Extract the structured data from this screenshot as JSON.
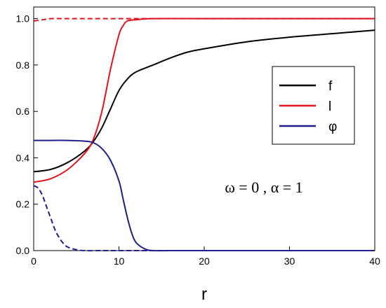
{
  "chart_data": {
    "type": "line",
    "title": "",
    "xlabel": "r",
    "ylabel": "",
    "xlim": [
      0,
      40
    ],
    "ylim": [
      0,
      1.05
    ],
    "x_ticks": [
      "0",
      "10",
      "20",
      "30",
      "40"
    ],
    "y_ticks": [
      "0.0",
      "0.2",
      "0.4",
      "0.6",
      "0.8",
      "1.0"
    ],
    "grid": false,
    "legend_position": "right",
    "annotation": "ω = 0 , α = 1",
    "series": [
      {
        "name": "f",
        "color": "#000000",
        "dash": "solid",
        "x": [
          0,
          2,
          4,
          6,
          7,
          8,
          9,
          10,
          11,
          12,
          14,
          16,
          18,
          20,
          25,
          30,
          35,
          40
        ],
        "y": [
          0.34,
          0.35,
          0.38,
          0.43,
          0.47,
          0.53,
          0.61,
          0.69,
          0.74,
          0.77,
          0.8,
          0.83,
          0.855,
          0.87,
          0.9,
          0.92,
          0.935,
          0.95
        ]
      },
      {
        "name": "l",
        "color": "#e0141e",
        "dash": "solid",
        "x": [
          0,
          2,
          4,
          6,
          7,
          8,
          9,
          10,
          10.5,
          11,
          12,
          14,
          20,
          30,
          40
        ],
        "y": [
          0.295,
          0.31,
          0.35,
          0.42,
          0.48,
          0.6,
          0.78,
          0.93,
          0.97,
          0.99,
          0.995,
          1.0,
          1.0,
          1.0,
          1.0
        ]
      },
      {
        "name": "φ",
        "color": "#1e1e8c",
        "dash": "solid",
        "x": [
          0,
          2,
          4,
          6,
          7,
          8,
          9,
          10,
          10.5,
          11,
          11.5,
          12,
          13,
          14,
          16,
          20,
          30,
          40
        ],
        "y": [
          0.475,
          0.475,
          0.475,
          0.472,
          0.465,
          0.44,
          0.39,
          0.3,
          0.22,
          0.14,
          0.075,
          0.035,
          0.008,
          0.0,
          0.0,
          0.0,
          0.0,
          0.0
        ]
      },
      {
        "color": "#e0141e",
        "dash": "dashed",
        "x": [
          0,
          1,
          2,
          3,
          4,
          6,
          10,
          20,
          30,
          40
        ],
        "y": [
          0.99,
          0.995,
          1.0,
          1.0,
          1.0,
          1.0,
          1.0,
          1.0,
          1.0,
          1.0
        ]
      },
      {
        "color": "#1e1e8c",
        "dash": "dashed",
        "x": [
          0,
          0.5,
          1,
          1.5,
          2,
          2.5,
          3,
          3.5,
          4,
          5,
          6,
          8,
          10,
          20,
          40
        ],
        "y": [
          0.28,
          0.27,
          0.24,
          0.19,
          0.14,
          0.09,
          0.055,
          0.03,
          0.015,
          0.004,
          0.0,
          0.0,
          0.0,
          0.0,
          0.0
        ]
      }
    ]
  }
}
